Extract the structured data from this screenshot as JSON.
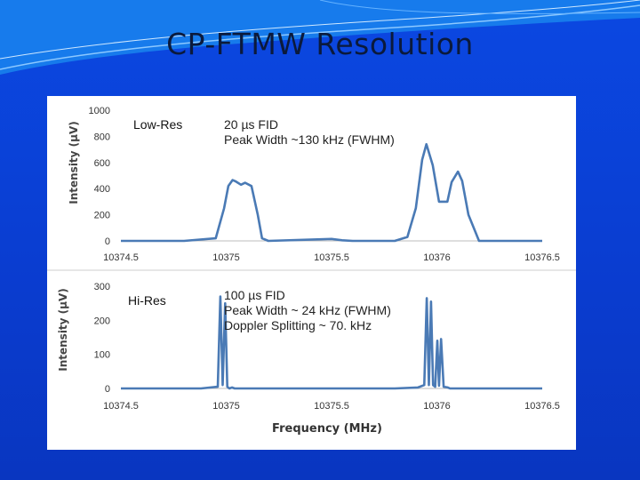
{
  "slide": {
    "title": "CP-FTMW Resolution"
  },
  "chart_data": [
    {
      "type": "line",
      "tag": "Low-Res",
      "annotation": [
        "20 µs FID",
        "Peak Width ~130 kHz (FWHM)"
      ],
      "ylabel": "Intensity (µV)",
      "xlabel": "",
      "ylim": [
        0,
        1000
      ],
      "yticks": [
        "0",
        "200",
        "400",
        "600",
        "800",
        "1000"
      ],
      "xlim": [
        10374.5,
        10376.5
      ],
      "xticks": [
        "10374.5",
        "10375",
        "10375.5",
        "10376",
        "10376.5"
      ],
      "grid": false,
      "color": "#4a7ab5",
      "x": [
        10374.5,
        10374.8,
        10374.95,
        10374.99,
        10375.01,
        10375.03,
        10375.045,
        10375.07,
        10375.09,
        10375.12,
        10375.15,
        10375.17,
        10375.2,
        10375.5,
        10375.55,
        10375.6,
        10375.8,
        10375.86,
        10375.9,
        10375.93,
        10375.95,
        10375.98,
        10376.01,
        10376.05,
        10376.07,
        10376.1,
        10376.12,
        10376.15,
        10376.2,
        10376.5
      ],
      "y": [
        0,
        0,
        20,
        250,
        420,
        465,
        455,
        430,
        445,
        420,
        200,
        20,
        0,
        15,
        5,
        0,
        0,
        30,
        250,
        620,
        740,
        580,
        300,
        300,
        450,
        530,
        460,
        200,
        0,
        0
      ]
    },
    {
      "type": "line",
      "tag": "Hi-Res",
      "annotation": [
        "100 µs FID",
        "Peak Width ~ 24 kHz (FWHM)",
        "Doppler Splitting ~ 70. kHz"
      ],
      "ylabel": "Intensity (µV)",
      "xlabel": "Frequency (MHz)",
      "ylim": [
        0,
        300
      ],
      "yticks": [
        "0",
        "100",
        "200",
        "300"
      ],
      "xlim": [
        10374.5,
        10376.5
      ],
      "xticks": [
        "10374.5",
        "10375",
        "10375.5",
        "10376",
        "10376.5"
      ],
      "grid": false,
      "color": "#4a7ab5",
      "x": [
        10374.5,
        10374.88,
        10374.96,
        10374.972,
        10374.983,
        10374.995,
        10375.005,
        10375.015,
        10375.027,
        10375.04,
        10375.2,
        10375.8,
        10375.91,
        10375.94,
        10375.952,
        10375.962,
        10375.972,
        10375.982,
        10375.992,
        10376.002,
        10376.01,
        10376.02,
        10376.032,
        10376.042,
        10376.052,
        10376.062,
        10376.072,
        10376.084,
        10376.1,
        10376.5
      ],
      "y": [
        0,
        0,
        5,
        270,
        10,
        250,
        5,
        0,
        3,
        0,
        0,
        0,
        3,
        10,
        265,
        10,
        255,
        10,
        5,
        140,
        8,
        145,
        5,
        4,
        3,
        0,
        0,
        0,
        0,
        0
      ]
    }
  ]
}
